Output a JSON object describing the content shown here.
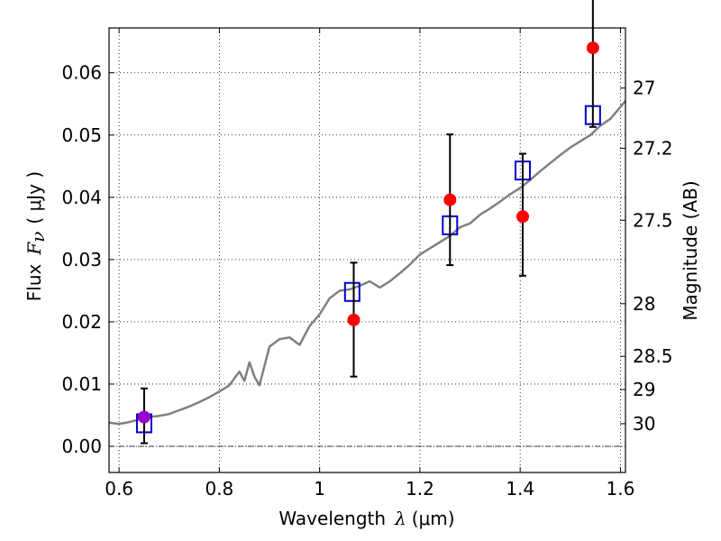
{
  "chart_data": {
    "type": "scatter",
    "xlabel": {
      "prefix": "Wavelength",
      "symbol": "λ",
      "unit": "(μm)"
    },
    "ylabel": {
      "prefix": "Flux",
      "symbol": "F",
      "subscript": "ν",
      "unit": "( μJy )"
    },
    "y2label": "Magnitude (AB)",
    "xlim": [
      0.58,
      1.61
    ],
    "ylim": [
      -0.0042,
      0.0672
    ],
    "x_ticks": [
      {
        "value": 0.6,
        "label": "0.6"
      },
      {
        "value": 0.8,
        "label": "0.8"
      },
      {
        "value": 1.0,
        "label": "1"
      },
      {
        "value": 1.2,
        "label": "1.2"
      },
      {
        "value": 1.4,
        "label": "1.4"
      },
      {
        "value": 1.6,
        "label": "1.6"
      }
    ],
    "y_ticks": [
      {
        "value": 0.0,
        "label": "0.00"
      },
      {
        "value": 0.01,
        "label": "0.01"
      },
      {
        "value": 0.02,
        "label": "0.02"
      },
      {
        "value": 0.03,
        "label": "0.03"
      },
      {
        "value": 0.04,
        "label": "0.04"
      },
      {
        "value": 0.05,
        "label": "0.05"
      },
      {
        "value": 0.06,
        "label": "0.06"
      }
    ],
    "y2_ticks": [
      {
        "value": 27.0,
        "label": "27"
      },
      {
        "value": 27.2,
        "label": "27.2"
      },
      {
        "value": 27.5,
        "label": "27.5"
      },
      {
        "value": 28.0,
        "label": "28"
      },
      {
        "value": 28.5,
        "label": "28.5"
      },
      {
        "value": 29.0,
        "label": "29"
      },
      {
        "value": 30.0,
        "label": "30"
      }
    ],
    "grid": true,
    "zero_line": true,
    "series": [
      {
        "kind": "line",
        "color": "#808080",
        "x": [
          0.58,
          0.6,
          0.62,
          0.64,
          0.66,
          0.68,
          0.7,
          0.72,
          0.74,
          0.76,
          0.78,
          0.8,
          0.82,
          0.84,
          0.85,
          0.86,
          0.87,
          0.88,
          0.9,
          0.92,
          0.94,
          0.96,
          0.98,
          1.0,
          1.02,
          1.04,
          1.06,
          1.08,
          1.1,
          1.12,
          1.14,
          1.16,
          1.18,
          1.2,
          1.22,
          1.24,
          1.26,
          1.28,
          1.3,
          1.32,
          1.34,
          1.36,
          1.38,
          1.4,
          1.42,
          1.44,
          1.46,
          1.48,
          1.5,
          1.52,
          1.54,
          1.56,
          1.58,
          1.6,
          1.61
        ],
        "y": [
          0.0038,
          0.0036,
          0.0039,
          0.0043,
          0.0047,
          0.0049,
          0.0052,
          0.0058,
          0.0064,
          0.0071,
          0.0079,
          0.0088,
          0.0098,
          0.012,
          0.0105,
          0.0135,
          0.0112,
          0.0098,
          0.016,
          0.0172,
          0.0175,
          0.0163,
          0.0193,
          0.0212,
          0.0238,
          0.025,
          0.0252,
          0.0258,
          0.0265,
          0.0255,
          0.0265,
          0.0278,
          0.0292,
          0.0308,
          0.0318,
          0.0328,
          0.0338,
          0.0352,
          0.0358,
          0.0372,
          0.0382,
          0.0393,
          0.0405,
          0.0415,
          0.0428,
          0.0442,
          0.0455,
          0.0468,
          0.048,
          0.049,
          0.05,
          0.0515,
          0.0526,
          0.0545,
          0.0555
        ]
      },
      {
        "kind": "points",
        "marker": "square",
        "color": "#0000cc",
        "x": [
          0.65,
          1.065,
          1.26,
          1.405,
          1.545
        ],
        "y": [
          0.0037,
          0.0248,
          0.0355,
          0.0443,
          0.0532
        ]
      },
      {
        "kind": "points",
        "marker": "circle",
        "color": "#ff0000",
        "x": [
          1.068,
          1.26,
          1.405,
          1.545
        ],
        "y": [
          0.0203,
          0.0396,
          0.0369,
          0.064
        ],
        "yerr_low": [
          0.0091,
          0.0105,
          0.0095,
          0.0127
        ],
        "yerr_high": [
          0.0092,
          0.0105,
          0.0101,
          0.0127
        ]
      },
      {
        "kind": "points",
        "marker": "circle",
        "color": "#9900cc",
        "x": [
          0.65
        ],
        "y": [
          0.0047
        ],
        "yerr_low": [
          0.0042
        ],
        "yerr_high": [
          0.0046
        ]
      }
    ]
  }
}
